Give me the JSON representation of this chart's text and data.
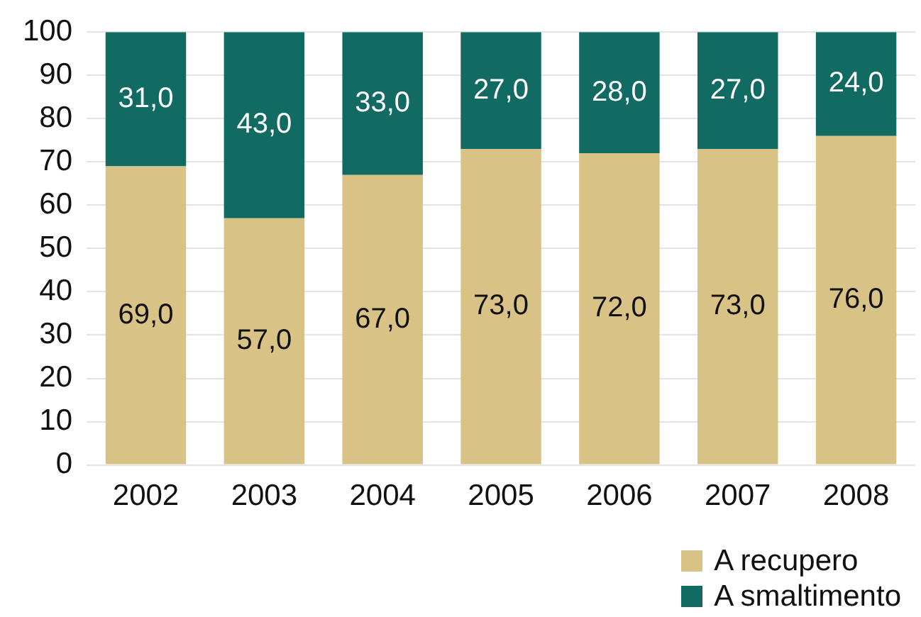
{
  "chart_data": {
    "type": "bar",
    "stacked": true,
    "categories": [
      "2002",
      "2003",
      "2004",
      "2005",
      "2006",
      "2007",
      "2008"
    ],
    "series": [
      {
        "name": "A recupero",
        "color": "#d9c285",
        "values": [
          69,
          57,
          67,
          73,
          72,
          73,
          76
        ],
        "value_labels": [
          "69,0",
          "57,0",
          "67,0",
          "73,0",
          "72,0",
          "73,0",
          "76,0"
        ]
      },
      {
        "name": "A smaltimento",
        "color": "#116b63",
        "values": [
          31,
          43,
          33,
          27,
          28,
          27,
          24
        ],
        "value_labels": [
          "31,0",
          "43,0",
          "33,0",
          "27,0",
          "28,0",
          "27,0",
          "24,0"
        ]
      }
    ],
    "ylim": [
      0,
      100
    ],
    "yticks": [
      0,
      10,
      20,
      30,
      40,
      50,
      60,
      70,
      80,
      90,
      100
    ],
    "grid": "y",
    "legend": "bottom right"
  }
}
